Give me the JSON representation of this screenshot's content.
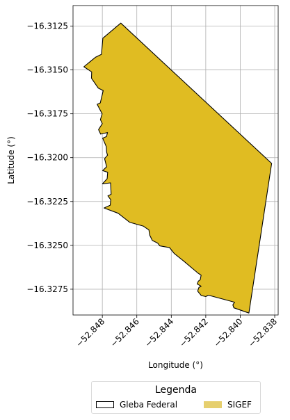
{
  "chart_data": {
    "type": "map",
    "xlabel": "Longitude (°)",
    "ylabel": "Latitude (°)",
    "xlim": [
      -52.8497,
      -52.8378
    ],
    "ylim": [
      -16.32897,
      -16.31133
    ],
    "xticks": [
      -52.848,
      -52.846,
      -52.844,
      -52.842,
      -52.84,
      -52.838
    ],
    "xtick_labels": [
      "−52.848",
      "−52.846",
      "−52.844",
      "−52.842",
      "−52.840",
      "−52.838"
    ],
    "yticks": [
      -16.3125,
      -16.315,
      -16.3175,
      -16.32,
      -16.3225,
      -16.325,
      -16.3275
    ],
    "ytick_labels": [
      "−16.3125",
      "−16.3150",
      "−16.3175",
      "−16.3200",
      "−16.3225",
      "−16.3250",
      "−16.3275"
    ],
    "grid": true,
    "colors": {
      "sigef_fill": "#e0bc22",
      "sigef_legend": "#e6cf6e",
      "gleba_edge": "#000000",
      "grid": "#b0b0b0"
    },
    "layers": [
      {
        "name": "Gleba Federal",
        "style": "outline",
        "coords": [
          [
            -52.84693,
            -16.31233
          ],
          [
            -52.83818,
            -16.32033
          ],
          [
            -52.8395,
            -16.32886
          ],
          [
            -52.84037,
            -16.32856
          ],
          [
            -52.84043,
            -16.32839
          ],
          [
            -52.84033,
            -16.32824
          ],
          [
            -52.84185,
            -16.32784
          ],
          [
            -52.842,
            -16.32792
          ],
          [
            -52.84226,
            -16.32786
          ],
          [
            -52.84247,
            -16.32761
          ],
          [
            -52.8424,
            -16.3274
          ],
          [
            -52.84227,
            -16.32733
          ],
          [
            -52.8425,
            -16.3272
          ],
          [
            -52.84243,
            -16.32704
          ],
          [
            -52.84232,
            -16.32696
          ],
          [
            -52.84227,
            -16.3267
          ],
          [
            -52.84244,
            -16.32659
          ],
          [
            -52.84325,
            -16.32592
          ],
          [
            -52.84383,
            -16.32546
          ],
          [
            -52.8441,
            -16.32513
          ],
          [
            -52.84467,
            -16.32503
          ],
          [
            -52.84479,
            -16.32487
          ],
          [
            -52.8451,
            -16.32472
          ],
          [
            -52.84525,
            -16.32442
          ],
          [
            -52.8453,
            -16.32412
          ],
          [
            -52.84563,
            -16.3239
          ],
          [
            -52.84642,
            -16.32368
          ],
          [
            -52.84708,
            -16.32317
          ],
          [
            -52.8479,
            -16.32287
          ],
          [
            -52.84754,
            -16.32271
          ],
          [
            -52.84751,
            -16.3224
          ],
          [
            -52.84768,
            -16.32218
          ],
          [
            -52.84749,
            -16.32209
          ],
          [
            -52.84752,
            -16.32144
          ],
          [
            -52.84799,
            -16.32149
          ],
          [
            -52.84772,
            -16.3212
          ],
          [
            -52.84769,
            -16.32083
          ],
          [
            -52.84798,
            -16.32074
          ],
          [
            -52.84775,
            -16.32052
          ],
          [
            -52.84787,
            -16.32006
          ],
          [
            -52.8477,
            -16.31986
          ],
          [
            -52.84775,
            -16.31968
          ],
          [
            -52.84777,
            -16.31937
          ],
          [
            -52.84798,
            -16.31889
          ],
          [
            -52.84776,
            -16.3188
          ],
          [
            -52.8477,
            -16.31857
          ],
          [
            -52.8481,
            -16.31866
          ],
          [
            -52.84822,
            -16.3184
          ],
          [
            -52.848,
            -16.31806
          ],
          [
            -52.84811,
            -16.31783
          ],
          [
            -52.84801,
            -16.3175
          ],
          [
            -52.8483,
            -16.31696
          ],
          [
            -52.84812,
            -16.31688
          ],
          [
            -52.84795,
            -16.31618
          ],
          [
            -52.84824,
            -16.31603
          ],
          [
            -52.84863,
            -16.31547
          ],
          [
            -52.84862,
            -16.31511
          ],
          [
            -52.84907,
            -16.31482
          ],
          [
            -52.8484,
            -16.31428
          ],
          [
            -52.84805,
            -16.31411
          ],
          [
            -52.84797,
            -16.31319
          ]
        ]
      },
      {
        "name": "SIGEF",
        "style": "fill",
        "coords": [
          [
            -52.84693,
            -16.31233
          ],
          [
            -52.83818,
            -16.32033
          ],
          [
            -52.8395,
            -16.32886
          ],
          [
            -52.84037,
            -16.32856
          ],
          [
            -52.84043,
            -16.32839
          ],
          [
            -52.84033,
            -16.32824
          ],
          [
            -52.84185,
            -16.32784
          ],
          [
            -52.842,
            -16.32792
          ],
          [
            -52.84226,
            -16.32786
          ],
          [
            -52.84247,
            -16.32761
          ],
          [
            -52.8424,
            -16.3274
          ],
          [
            -52.84227,
            -16.32733
          ],
          [
            -52.8425,
            -16.3272
          ],
          [
            -52.84243,
            -16.32704
          ],
          [
            -52.84232,
            -16.32696
          ],
          [
            -52.84227,
            -16.3267
          ],
          [
            -52.84244,
            -16.32659
          ],
          [
            -52.84325,
            -16.32592
          ],
          [
            -52.84383,
            -16.32546
          ],
          [
            -52.8441,
            -16.32513
          ],
          [
            -52.84467,
            -16.32503
          ],
          [
            -52.84479,
            -16.32487
          ],
          [
            -52.8451,
            -16.32472
          ],
          [
            -52.84525,
            -16.32442
          ],
          [
            -52.8453,
            -16.32412
          ],
          [
            -52.84563,
            -16.3239
          ],
          [
            -52.84642,
            -16.32368
          ],
          [
            -52.84708,
            -16.32317
          ],
          [
            -52.8479,
            -16.32287
          ],
          [
            -52.84754,
            -16.32271
          ],
          [
            -52.84751,
            -16.3224
          ],
          [
            -52.84768,
            -16.32218
          ],
          [
            -52.84749,
            -16.32209
          ],
          [
            -52.84752,
            -16.32144
          ],
          [
            -52.84799,
            -16.32149
          ],
          [
            -52.84772,
            -16.3212
          ],
          [
            -52.84769,
            -16.32083
          ],
          [
            -52.84798,
            -16.32074
          ],
          [
            -52.84775,
            -16.32052
          ],
          [
            -52.84787,
            -16.32006
          ],
          [
            -52.8477,
            -16.31986
          ],
          [
            -52.84775,
            -16.31968
          ],
          [
            -52.84777,
            -16.31937
          ],
          [
            -52.84798,
            -16.31889
          ],
          [
            -52.84776,
            -16.3188
          ],
          [
            -52.8477,
            -16.31857
          ],
          [
            -52.8481,
            -16.31866
          ],
          [
            -52.84822,
            -16.3184
          ],
          [
            -52.848,
            -16.31806
          ],
          [
            -52.84811,
            -16.31783
          ],
          [
            -52.84801,
            -16.3175
          ],
          [
            -52.8483,
            -16.31696
          ],
          [
            -52.84812,
            -16.31688
          ],
          [
            -52.84795,
            -16.31618
          ],
          [
            -52.84824,
            -16.31603
          ],
          [
            -52.84863,
            -16.31547
          ],
          [
            -52.84862,
            -16.31511
          ],
          [
            -52.84907,
            -16.31482
          ],
          [
            -52.8484,
            -16.31428
          ],
          [
            -52.84805,
            -16.31411
          ],
          [
            -52.84797,
            -16.31319
          ]
        ]
      }
    ]
  },
  "legend": {
    "title": "Legenda",
    "entries": [
      {
        "label": "Gleba Federal",
        "symbol": "outline"
      },
      {
        "label": "SIGEF",
        "symbol": "fill"
      }
    ]
  }
}
